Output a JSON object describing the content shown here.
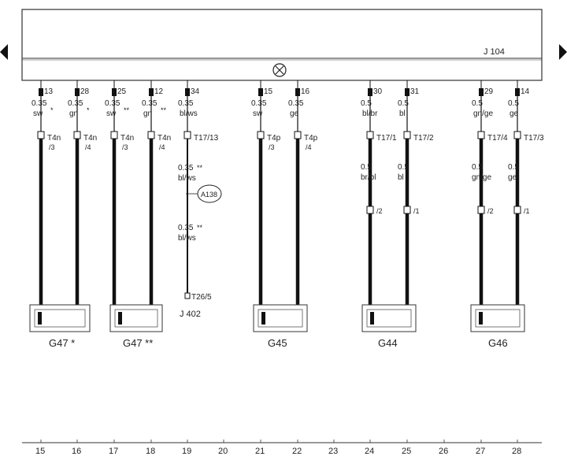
{
  "unit": {
    "label": "J 104",
    "ground_symbol": "circle-x",
    "arrow_left": "triangle-left",
    "arrow_right": "triangle-right"
  },
  "wires": [
    {
      "pin": "13",
      "size": "0.35",
      "color": "sw",
      "mark": "*",
      "conn_a": "T4n",
      "conn_b": "/3",
      "cable": "thick"
    },
    {
      "pin": "28",
      "size": "0.35",
      "color": "gn",
      "mark": "*",
      "conn_a": "T4n",
      "conn_b": "/4",
      "cable": "thick"
    },
    {
      "pin": "25",
      "size": "0.35",
      "color": "sw",
      "mark": "**",
      "conn_a": "T4n",
      "conn_b": "/3",
      "cable": "thick"
    },
    {
      "pin": "12",
      "size": "0.35",
      "color": "gn",
      "mark": "**",
      "conn_a": "T4n",
      "conn_b": "/4",
      "cable": "thick"
    },
    {
      "pin": "34",
      "size": "0.35",
      "color": "bl/ws",
      "mark": "",
      "conn_a": "T17/13",
      "conn_b": "",
      "cable": "thin",
      "size2": "0.35",
      "color2": "bl/ws",
      "mark2": "**",
      "splice": "A138",
      "size3": "0.35",
      "color3": "bl/ws",
      "mark3": "**",
      "end": "T26/5"
    },
    {
      "pin": "15",
      "size": "0.35",
      "color": "sw",
      "mark": "",
      "conn_a": "T4p",
      "conn_b": "/3",
      "cable": "thick"
    },
    {
      "pin": "16",
      "size": "0.35",
      "color": "ge",
      "mark": "",
      "conn_a": "T4p",
      "conn_b": "/4",
      "cable": "thick"
    },
    {
      "pin": "30",
      "size": "0.5",
      "color": "bl/br",
      "mark": "",
      "conn_a": "T17/1",
      "conn_b": "",
      "cable": "thick",
      "size2": "0.5",
      "color2": "br/bl",
      "conn2": "/2"
    },
    {
      "pin": "31",
      "size": "0.5",
      "color": "bl",
      "mark": "",
      "conn_a": "T17/2",
      "conn_b": "",
      "cable": "thick",
      "size2": "0.5",
      "color2": "bl",
      "conn2": "/1"
    },
    {
      "pin": "29",
      "size": "0.5",
      "color": "gn/ge",
      "mark": "",
      "conn_a": "T17/4",
      "conn_b": "",
      "cable": "thick",
      "size2": "0.5",
      "color2": "gn/ge",
      "conn2": "/2"
    },
    {
      "pin": "14",
      "size": "0.5",
      "color": "ge",
      "mark": "",
      "conn_a": "T17/3",
      "conn_b": "",
      "cable": "thick",
      "size2": "0.5",
      "color2": "ge",
      "conn2": "/1"
    }
  ],
  "components": [
    {
      "label": "G47 *"
    },
    {
      "label": "G47 **"
    },
    {
      "label": "J 402"
    },
    {
      "label": "G45"
    },
    {
      "label": "G44"
    },
    {
      "label": "G46"
    }
  ],
  "axis": [
    "15",
    "16",
    "17",
    "18",
    "19",
    "20",
    "21",
    "22",
    "23",
    "24",
    "25",
    "26",
    "27",
    "28"
  ],
  "colors": {
    "line": "#111111",
    "box": "#333333",
    "bg": "#ffffff"
  }
}
